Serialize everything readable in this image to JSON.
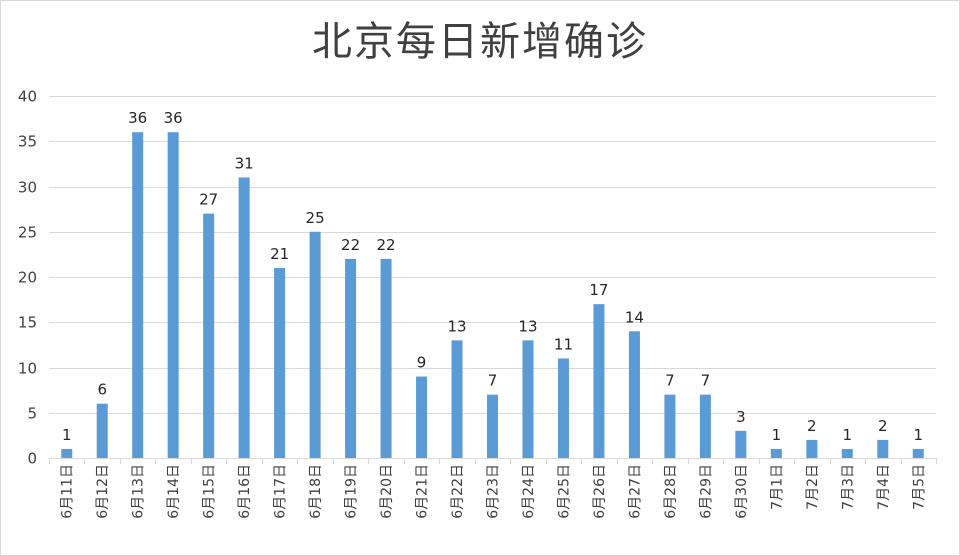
{
  "chart_data": {
    "type": "bar",
    "title": "北京每日新增确诊",
    "xlabel": "",
    "ylabel": "",
    "ylim": [
      0,
      40
    ],
    "yticks": [
      0,
      5,
      10,
      15,
      20,
      25,
      30,
      35,
      40
    ],
    "grid": true,
    "legend": "none",
    "categories": [
      "6月11日",
      "6月12日",
      "6月13日",
      "6月14日",
      "6月15日",
      "6月16日",
      "6月17日",
      "6月18日",
      "6月19日",
      "6月20日",
      "6月21日",
      "6月22日",
      "6月23日",
      "6月24日",
      "6月25日",
      "6月26日",
      "6月27日",
      "6月28日",
      "6月29日",
      "6月30日",
      "7月1日",
      "7月2日",
      "7月3日",
      "7月4日",
      "7月5日"
    ],
    "values": [
      1,
      6,
      36,
      36,
      27,
      31,
      21,
      25,
      22,
      22,
      9,
      13,
      7,
      13,
      11,
      17,
      14,
      7,
      7,
      3,
      1,
      2,
      1,
      2,
      1
    ],
    "bar_color": "#5B9BD5",
    "grid_color": "#d9d9d9"
  }
}
